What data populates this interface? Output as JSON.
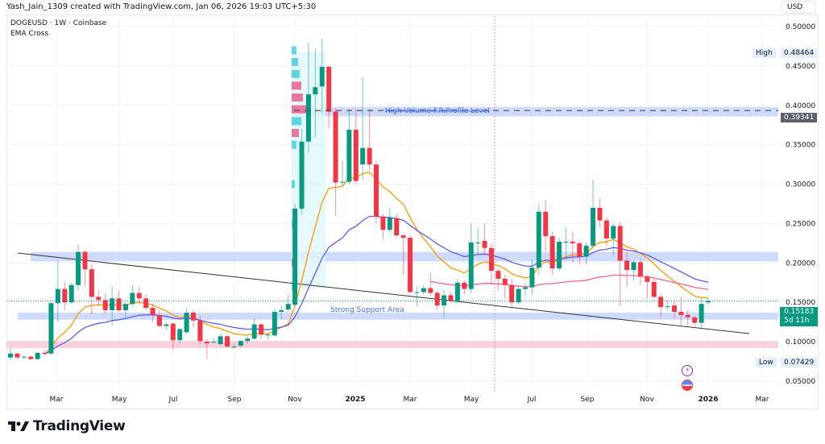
{
  "header": {
    "credit": "Yash_Jain_1309 created with TradingView.com, Jan 06, 2026 19:03 UTC+5:30",
    "symbol_line": "DOGEUSD · 1W · Coinbase",
    "indicator": "EMA Cross"
  },
  "price_axis": {
    "currency": "USD",
    "high_label": "High",
    "high_value": "0.48464",
    "low_label": "Low",
    "low_value": "0.07429",
    "level_value": "0.39341",
    "last_price": "0.15183",
    "countdown": "5d 11h"
  },
  "annotations": {
    "volume_level_text": "High Volume F.R.Profile Level",
    "support_text": "Strong Support Area"
  },
  "footer": {
    "brand": "TradingView"
  },
  "colors": {
    "up": "#089981",
    "down": "#f23645",
    "ema_fast": "#ff9800",
    "ema_slow": "#5b5bf0",
    "ema_long": "#f06292",
    "zone_blue": "#c7d5fb",
    "zone_pink": "#f8c8d7",
    "last_price": "#089981"
  },
  "chart_data": {
    "type": "candlestick",
    "title": "DOGEUSD · 1W · Coinbase",
    "ylim": [
      0.04,
      0.51
    ],
    "y_ticks": [
      "0.50000",
      "0.45000",
      "0.40000",
      "0.35000",
      "0.30000",
      "0.25000",
      "0.20000",
      "0.15000",
      "0.10000",
      "0.05000"
    ],
    "x_ticks": [
      "Mar",
      "May",
      "Jul",
      "Sep",
      "Nov",
      "2025",
      "Mar",
      "May",
      "Jul",
      "Sep",
      "Nov",
      "2026",
      "Mar"
    ],
    "grid": true,
    "zones": [
      {
        "type": "band",
        "from": 0.202,
        "to": 0.214,
        "color": "blue"
      },
      {
        "type": "band",
        "from": 0.128,
        "to": 0.137,
        "color": "blue",
        "label": "Strong Support Area"
      },
      {
        "type": "band",
        "from": 0.092,
        "to": 0.101,
        "color": "pink"
      },
      {
        "type": "band",
        "from": 0.386,
        "to": 0.398,
        "color": "blue",
        "label": "High Volume F.R.Profile Level",
        "level": 0.39341
      }
    ],
    "ohlc": [
      [
        0.08,
        0.092,
        0.077,
        0.085
      ],
      [
        0.085,
        0.086,
        0.078,
        0.08
      ],
      [
        0.08,
        0.082,
        0.078,
        0.081
      ],
      [
        0.081,
        0.082,
        0.077,
        0.078
      ],
      [
        0.078,
        0.087,
        0.077,
        0.086
      ],
      [
        0.086,
        0.09,
        0.084,
        0.085
      ],
      [
        0.085,
        0.15,
        0.084,
        0.149
      ],
      [
        0.149,
        0.203,
        0.125,
        0.167
      ],
      [
        0.167,
        0.177,
        0.14,
        0.15
      ],
      [
        0.15,
        0.175,
        0.148,
        0.172
      ],
      [
        0.172,
        0.223,
        0.165,
        0.214
      ],
      [
        0.214,
        0.216,
        0.17,
        0.192
      ],
      [
        0.192,
        0.198,
        0.135,
        0.157
      ],
      [
        0.157,
        0.165,
        0.145,
        0.153
      ],
      [
        0.153,
        0.162,
        0.135,
        0.14
      ],
      [
        0.14,
        0.17,
        0.12,
        0.155
      ],
      [
        0.155,
        0.165,
        0.138,
        0.14
      ],
      [
        0.14,
        0.15,
        0.13,
        0.148
      ],
      [
        0.148,
        0.172,
        0.145,
        0.162
      ],
      [
        0.162,
        0.17,
        0.148,
        0.155
      ],
      [
        0.155,
        0.16,
        0.14,
        0.143
      ],
      [
        0.143,
        0.148,
        0.125,
        0.134
      ],
      [
        0.134,
        0.14,
        0.118,
        0.12
      ],
      [
        0.12,
        0.125,
        0.115,
        0.122
      ],
      [
        0.123,
        0.125,
        0.09,
        0.102
      ],
      [
        0.102,
        0.118,
        0.098,
        0.116
      ],
      [
        0.112,
        0.143,
        0.11,
        0.137
      ],
      [
        0.137,
        0.14,
        0.118,
        0.127
      ],
      [
        0.127,
        0.133,
        0.097,
        0.101
      ],
      [
        0.1,
        0.103,
        0.078,
        0.098
      ],
      [
        0.1,
        0.105,
        0.098,
        0.1
      ],
      [
        0.097,
        0.11,
        0.095,
        0.107
      ],
      [
        0.107,
        0.108,
        0.092,
        0.094
      ],
      [
        0.094,
        0.097,
        0.091,
        0.094
      ],
      [
        0.095,
        0.103,
        0.093,
        0.101
      ],
      [
        0.101,
        0.107,
        0.098,
        0.104
      ],
      [
        0.104,
        0.13,
        0.102,
        0.122
      ],
      [
        0.122,
        0.124,
        0.103,
        0.109
      ],
      [
        0.109,
        0.111,
        0.103,
        0.109
      ],
      [
        0.108,
        0.142,
        0.106,
        0.138
      ],
      [
        0.138,
        0.146,
        0.128,
        0.14
      ],
      [
        0.141,
        0.16,
        0.138,
        0.148
      ],
      [
        0.147,
        0.275,
        0.145,
        0.269
      ],
      [
        0.269,
        0.37,
        0.262,
        0.354
      ],
      [
        0.354,
        0.48,
        0.34,
        0.414
      ],
      [
        0.414,
        0.472,
        0.36,
        0.423
      ],
      [
        0.424,
        0.48464,
        0.39,
        0.449
      ],
      [
        0.449,
        0.45,
        0.37,
        0.392
      ],
      [
        0.392,
        0.396,
        0.26,
        0.302
      ],
      [
        0.302,
        0.33,
        0.298,
        0.303
      ],
      [
        0.303,
        0.395,
        0.3,
        0.369
      ],
      [
        0.369,
        0.395,
        0.3,
        0.304
      ],
      [
        0.325,
        0.436,
        0.305,
        0.346
      ],
      [
        0.346,
        0.395,
        0.318,
        0.325
      ],
      [
        0.325,
        0.33,
        0.25,
        0.259
      ],
      [
        0.259,
        0.262,
        0.23,
        0.242
      ],
      [
        0.242,
        0.27,
        0.238,
        0.257
      ],
      [
        0.257,
        0.262,
        0.232,
        0.235
      ],
      [
        0.235,
        0.237,
        0.185,
        0.232
      ],
      [
        0.232,
        0.235,
        0.163,
        0.163
      ],
      [
        0.163,
        0.17,
        0.145,
        0.163
      ],
      [
        0.163,
        0.172,
        0.16,
        0.168
      ],
      [
        0.168,
        0.187,
        0.158,
        0.162
      ],
      [
        0.162,
        0.165,
        0.14,
        0.146
      ],
      [
        0.146,
        0.165,
        0.131,
        0.159
      ],
      [
        0.159,
        0.163,
        0.15,
        0.152
      ],
      [
        0.152,
        0.18,
        0.148,
        0.175
      ],
      [
        0.175,
        0.178,
        0.16,
        0.167
      ],
      [
        0.167,
        0.25,
        0.162,
        0.226
      ],
      [
        0.226,
        0.245,
        0.21,
        0.226
      ],
      [
        0.228,
        0.25,
        0.21,
        0.219
      ],
      [
        0.219,
        0.225,
        0.172,
        0.19
      ],
      [
        0.19,
        0.193,
        0.165,
        0.18
      ],
      [
        0.18,
        0.185,
        0.155,
        0.172
      ],
      [
        0.172,
        0.18,
        0.145,
        0.15
      ],
      [
        0.15,
        0.172,
        0.148,
        0.167
      ],
      [
        0.167,
        0.175,
        0.158,
        0.169
      ],
      [
        0.169,
        0.205,
        0.16,
        0.194
      ],
      [
        0.194,
        0.275,
        0.185,
        0.265
      ],
      [
        0.265,
        0.28,
        0.215,
        0.234
      ],
      [
        0.234,
        0.24,
        0.185,
        0.193
      ],
      [
        0.193,
        0.232,
        0.19,
        0.227
      ],
      [
        0.227,
        0.245,
        0.205,
        0.227
      ],
      [
        0.227,
        0.24,
        0.2,
        0.225
      ],
      [
        0.225,
        0.228,
        0.198,
        0.208
      ],
      [
        0.208,
        0.226,
        0.198,
        0.222
      ],
      [
        0.222,
        0.306,
        0.218,
        0.27
      ],
      [
        0.27,
        0.282,
        0.245,
        0.254
      ],
      [
        0.254,
        0.258,
        0.222,
        0.231
      ],
      [
        0.231,
        0.25,
        0.21,
        0.247
      ],
      [
        0.247,
        0.252,
        0.145,
        0.203
      ],
      [
        0.203,
        0.215,
        0.17,
        0.191
      ],
      [
        0.191,
        0.203,
        0.178,
        0.201
      ],
      [
        0.201,
        0.206,
        0.172,
        0.183
      ],
      [
        0.183,
        0.185,
        0.155,
        0.176
      ],
      [
        0.176,
        0.18,
        0.154,
        0.157
      ],
      [
        0.157,
        0.162,
        0.13,
        0.144
      ],
      [
        0.145,
        0.152,
        0.14,
        0.145
      ],
      [
        0.146,
        0.152,
        0.13,
        0.138
      ],
      [
        0.138,
        0.157,
        0.12,
        0.134
      ],
      [
        0.134,
        0.14,
        0.12,
        0.131
      ],
      [
        0.131,
        0.133,
        0.12,
        0.124
      ],
      [
        0.124,
        0.155,
        0.118,
        0.148
      ],
      [
        0.15,
        0.155,
        0.148,
        0.15183
      ]
    ]
  }
}
